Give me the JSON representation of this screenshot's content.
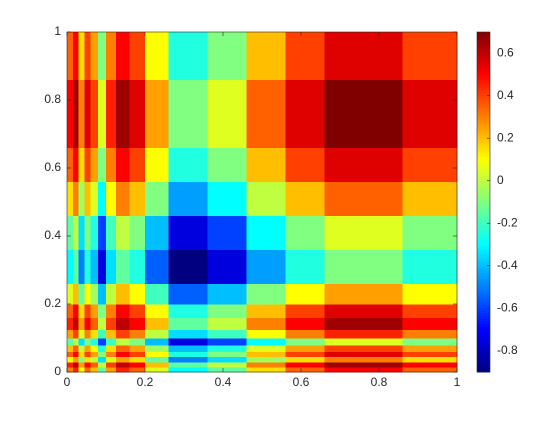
{
  "chart_data": {
    "type": "heatmap",
    "colormap": "jet",
    "x_edges": [
      0,
      0.015,
      0.03,
      0.045,
      0.06,
      0.08,
      0.1,
      0.125,
      0.16,
      0.2,
      0.26,
      0.36,
      0.46,
      0.56,
      0.66,
      0.86,
      1
    ],
    "y_edges": [
      0,
      0.015,
      0.03,
      0.045,
      0.06,
      0.08,
      0.1,
      0.125,
      0.16,
      0.2,
      0.26,
      0.36,
      0.46,
      0.56,
      0.66,
      0.86,
      1
    ],
    "z": [
      [
        0.3,
        0.45,
        0.1,
        0.35,
        0.2,
        -0.15,
        0.25,
        0.45,
        0.35,
        0.05,
        -0.3,
        -0.15,
        0.15,
        0.35,
        0.5,
        0.35
      ],
      [
        0.45,
        0.6,
        0.25,
        0.5,
        0.35,
        0,
        0.4,
        0.6,
        0.5,
        0.2,
        -0.15,
        0,
        0.3,
        0.5,
        0.65,
        0.5
      ],
      [
        0.1,
        0.25,
        -0.1,
        0.15,
        0,
        -0.35,
        0.05,
        0.25,
        0.15,
        -0.15,
        -0.5,
        -0.35,
        -0.05,
        0.15,
        0.3,
        0.15
      ],
      [
        0.35,
        0.5,
        0.15,
        0.4,
        0.25,
        -0.1,
        0.3,
        0.5,
        0.4,
        0.1,
        -0.25,
        -0.1,
        0.2,
        0.4,
        0.55,
        0.4
      ],
      [
        0.2,
        0.35,
        0,
        0.25,
        0.1,
        -0.25,
        0.15,
        0.35,
        0.25,
        -0.05,
        -0.4,
        -0.25,
        0.05,
        0.25,
        0.4,
        0.25
      ],
      [
        -0.15,
        0,
        -0.35,
        -0.1,
        -0.25,
        -0.6,
        -0.2,
        0,
        -0.1,
        -0.4,
        -0.75,
        -0.6,
        -0.3,
        -0.1,
        0.05,
        -0.1
      ],
      [
        0.25,
        0.4,
        0.05,
        0.3,
        0.15,
        -0.2,
        0.2,
        0.4,
        0.3,
        0,
        -0.35,
        -0.2,
        0.1,
        0.3,
        0.45,
        0.3
      ],
      [
        0.45,
        0.6,
        0.25,
        0.5,
        0.35,
        0,
        0.4,
        0.6,
        0.5,
        0.2,
        -0.15,
        0,
        0.3,
        0.5,
        0.65,
        0.5
      ],
      [
        0.35,
        0.5,
        0.15,
        0.4,
        0.25,
        -0.1,
        0.3,
        0.5,
        0.4,
        0.1,
        -0.25,
        -0.1,
        0.2,
        0.4,
        0.55,
        0.4
      ],
      [
        0.05,
        0.2,
        -0.15,
        0.1,
        -0.05,
        -0.4,
        0,
        0.2,
        0.1,
        -0.2,
        -0.55,
        -0.4,
        -0.1,
        0.1,
        0.25,
        0.1
      ],
      [
        -0.3,
        -0.15,
        -0.5,
        -0.25,
        -0.4,
        -0.75,
        -0.35,
        -0.15,
        -0.25,
        -0.55,
        -0.9,
        -0.75,
        -0.45,
        -0.25,
        -0.1,
        -0.25
      ],
      [
        -0.15,
        0,
        -0.35,
        -0.1,
        -0.25,
        -0.6,
        -0.2,
        0,
        -0.1,
        -0.4,
        -0.75,
        -0.6,
        -0.3,
        -0.1,
        0.05,
        -0.1
      ],
      [
        0.15,
        0.3,
        -0.05,
        0.2,
        0.05,
        -0.3,
        0.1,
        0.3,
        0.2,
        -0.1,
        -0.45,
        -0.3,
        0,
        0.2,
        0.35,
        0.2
      ],
      [
        0.35,
        0.5,
        0.15,
        0.4,
        0.25,
        -0.1,
        0.3,
        0.5,
        0.4,
        0.1,
        -0.25,
        -0.1,
        0.2,
        0.4,
        0.55,
        0.4
      ],
      [
        0.5,
        0.65,
        0.3,
        0.55,
        0.4,
        0.05,
        0.45,
        0.65,
        0.55,
        0.25,
        -0.1,
        0.05,
        0.35,
        0.55,
        0.7,
        0.55
      ],
      [
        0.35,
        0.5,
        0.15,
        0.4,
        0.25,
        -0.1,
        0.3,
        0.5,
        0.4,
        0.1,
        -0.25,
        -0.1,
        0.2,
        0.4,
        0.55,
        0.4
      ]
    ],
    "xlim": [
      0,
      1
    ],
    "ylim": [
      0,
      1
    ],
    "xticks": [
      0,
      0.2,
      0.4,
      0.6,
      0.8,
      1
    ],
    "yticks": [
      0,
      0.2,
      0.4,
      0.6,
      0.8,
      1
    ],
    "clim": [
      -0.9,
      0.7
    ],
    "cticks": [
      -0.8,
      -0.6,
      -0.4,
      -0.2,
      0,
      0.2,
      0.4,
      0.6
    ]
  }
}
